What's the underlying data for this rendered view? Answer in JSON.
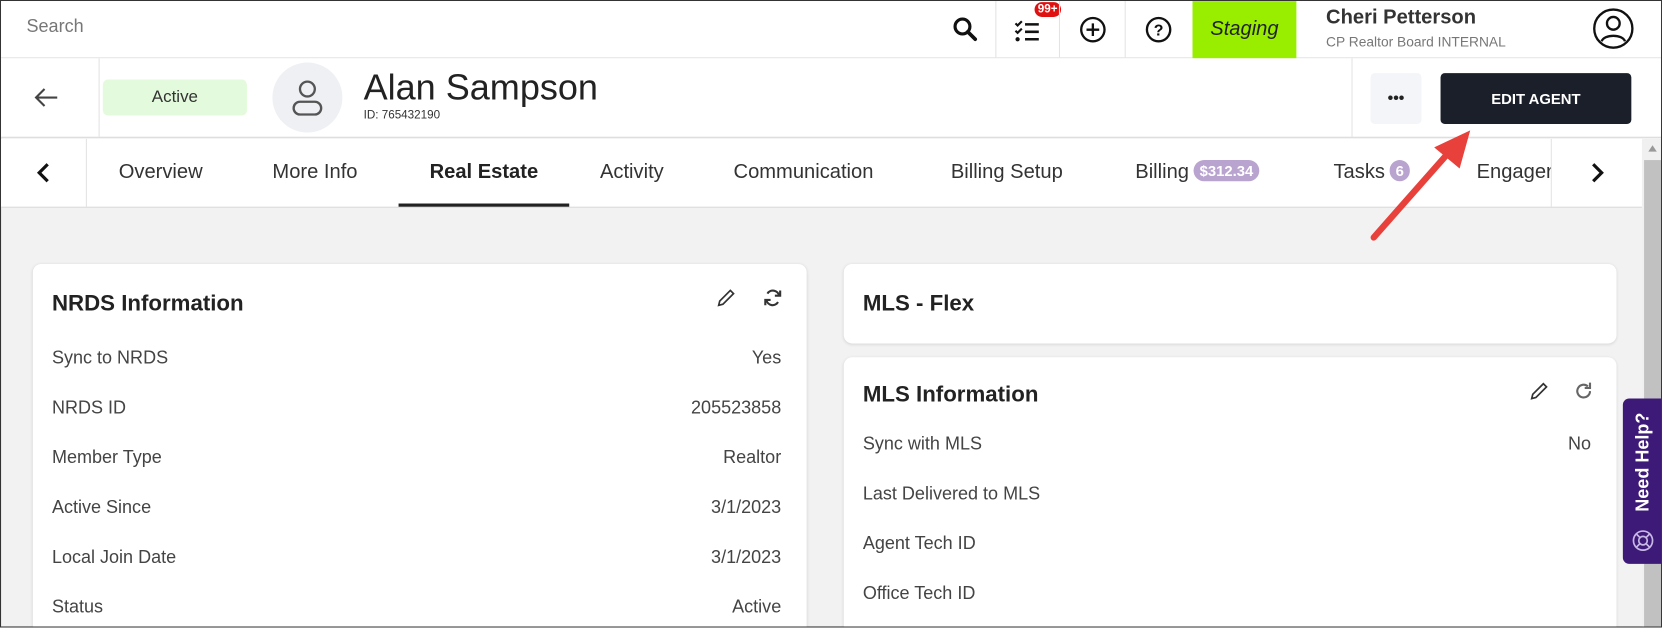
{
  "topbar": {
    "search_placeholder": "Search",
    "tasks_badge": "99+",
    "environment": "Staging",
    "environment_color": "#99ee00",
    "user_name": "Cheri Petterson",
    "user_org": "CP Realtor Board INTERNAL"
  },
  "header": {
    "status": "Active",
    "agent_name": "Alan Sampson",
    "agent_id": "ID: 765432190",
    "more_label": "•••",
    "edit_button": "EDIT AGENT"
  },
  "tabs": [
    {
      "label": "Overview"
    },
    {
      "label": "More Info"
    },
    {
      "label": "Real Estate",
      "active": true
    },
    {
      "label": "Activity"
    },
    {
      "label": "Communication"
    },
    {
      "label": "Billing Setup"
    },
    {
      "label": "Billing",
      "badge": "$312.34"
    },
    {
      "label": "Tasks",
      "badge": "6"
    },
    {
      "label": "Engager"
    }
  ],
  "nrds": {
    "title": "NRDS Information",
    "rows": [
      {
        "label": "Sync to NRDS",
        "value": "Yes"
      },
      {
        "label": "NRDS ID",
        "value": "205523858"
      },
      {
        "label": "Member Type",
        "value": "Realtor"
      },
      {
        "label": "Active Since",
        "value": "3/1/2023"
      },
      {
        "label": "Local Join Date",
        "value": "3/1/2023"
      },
      {
        "label": "Status",
        "value": "Active"
      }
    ]
  },
  "mls_flex": {
    "title": "MLS - Flex"
  },
  "mls": {
    "title": "MLS Information",
    "rows": [
      {
        "label": "Sync with MLS",
        "value": "No"
      },
      {
        "label": "Last Delivered to MLS",
        "value": ""
      },
      {
        "label": "Agent Tech ID",
        "value": ""
      },
      {
        "label": "Office Tech ID",
        "value": ""
      }
    ]
  },
  "help": {
    "label": "Need Help?",
    "color": "#3d1a78"
  }
}
